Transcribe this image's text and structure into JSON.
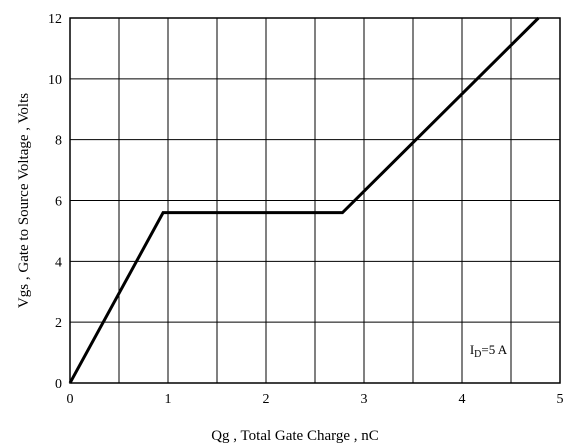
{
  "chart_data": {
    "type": "line",
    "title": "",
    "xlabel": "Qg , Total Gate Charge , nC",
    "ylabel": "Vgs , Gate to Source Voltage , Volts",
    "xlim": [
      0,
      5
    ],
    "ylim": [
      0,
      12
    ],
    "x_ticks": [
      0,
      1,
      2,
      3,
      4,
      5
    ],
    "y_ticks": [
      0,
      2,
      4,
      6,
      8,
      10,
      12
    ],
    "x_gridlines": [
      0,
      0.5,
      1,
      1.5,
      2,
      2.5,
      3,
      3.5,
      4,
      4.5,
      5
    ],
    "y_gridlines": [
      0,
      2,
      4,
      6,
      8,
      10,
      12
    ],
    "grid": true,
    "series": [
      {
        "x": [
          0,
          0.95,
          2.78,
          4.78
        ],
        "y": [
          0,
          5.6,
          5.6,
          12
        ]
      }
    ],
    "annotation": {
      "text": "I",
      "subscript": "D",
      "suffix": "=5 A",
      "x": 4.08,
      "y": 0.95
    }
  }
}
